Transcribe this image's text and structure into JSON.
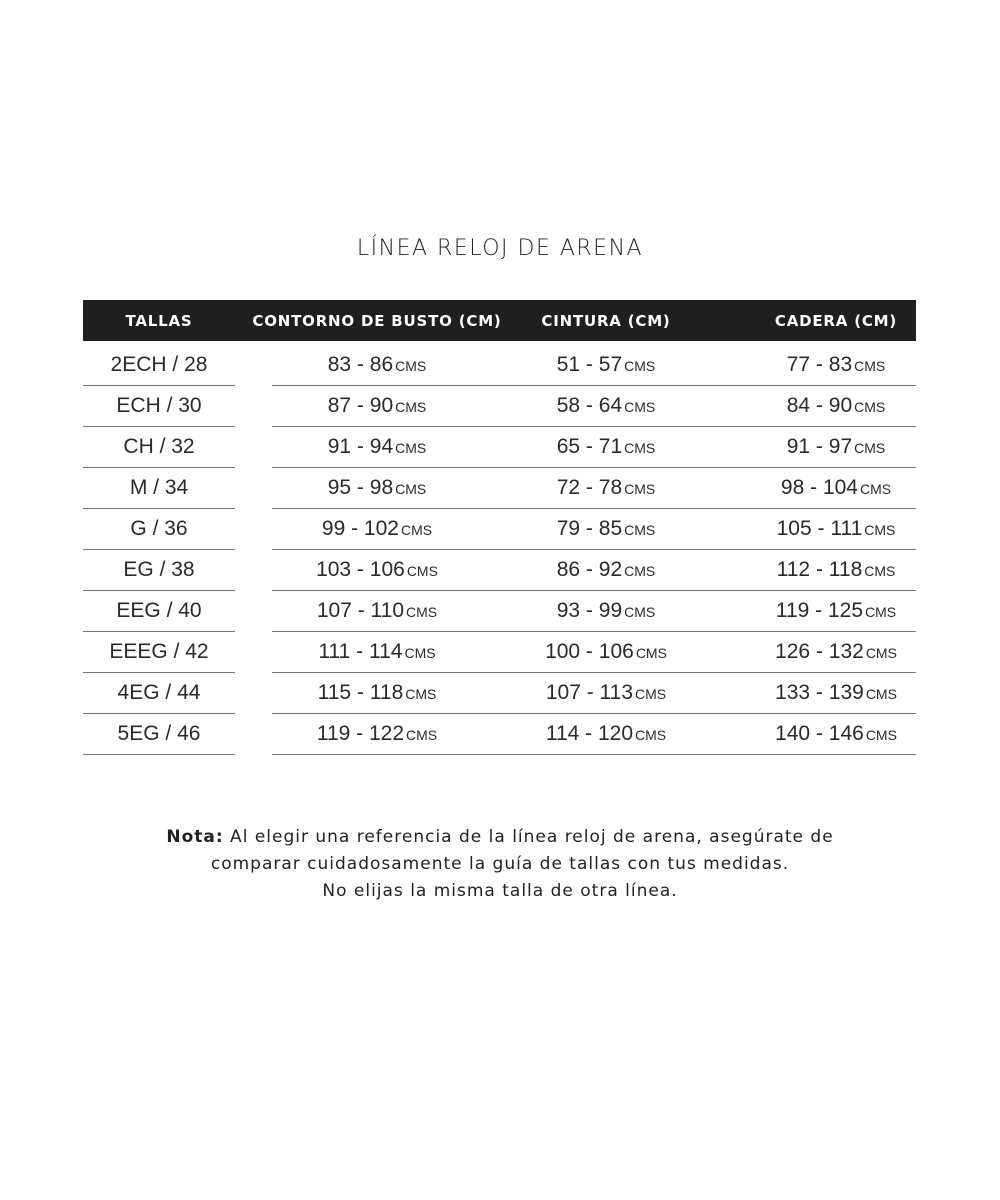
{
  "title": "LÍNEA RELOJ DE ARENA",
  "headers": [
    "TALLAS",
    "CONTORNO DE BUSTO (CM)",
    "CINTURA (CM)",
    "CADERA (CM)"
  ],
  "unit": "CMS",
  "rows": [
    {
      "talla": "2ECH / 28",
      "busto": "83 - 86",
      "cintura": "51 - 57",
      "cadera": "77 - 83"
    },
    {
      "talla": "ECH / 30",
      "busto": "87 - 90",
      "cintura": "58 - 64",
      "cadera": "84 - 90"
    },
    {
      "talla": "CH / 32",
      "busto": "91 - 94",
      "cintura": "65 - 71",
      "cadera": "91 - 97"
    },
    {
      "talla": "M / 34",
      "busto": "95 - 98",
      "cintura": "72 - 78",
      "cadera": "98 - 104"
    },
    {
      "talla": "G / 36",
      "busto": "99 - 102",
      "cintura": "79 - 85",
      "cadera": "105 - 111"
    },
    {
      "talla": "EG / 38",
      "busto": "103 - 106",
      "cintura": "86 - 92",
      "cadera": "112 - 118"
    },
    {
      "talla": "EEG / 40",
      "busto": "107 - 110",
      "cintura": "93 - 99",
      "cadera": "119 - 125"
    },
    {
      "talla": "EEEG / 42",
      "busto": "111 - 114",
      "cintura": "100 - 106",
      "cadera": "126 - 132"
    },
    {
      "talla": "4EG / 44",
      "busto": "115 - 118",
      "cintura": "107 - 113",
      "cadera": "133 - 139"
    },
    {
      "talla": "5EG / 46",
      "busto": "119 - 122",
      "cintura": "114 - 120",
      "cadera": "140 - 146"
    }
  ],
  "note": {
    "label": "Nota:",
    "line1": " Al elegir una referencia de la línea reloj de arena, asegúrate de",
    "line2": "comparar cuidadosamente la guía de tallas con tus medidas.",
    "line3": "No elijas la misma talla de otra línea."
  }
}
